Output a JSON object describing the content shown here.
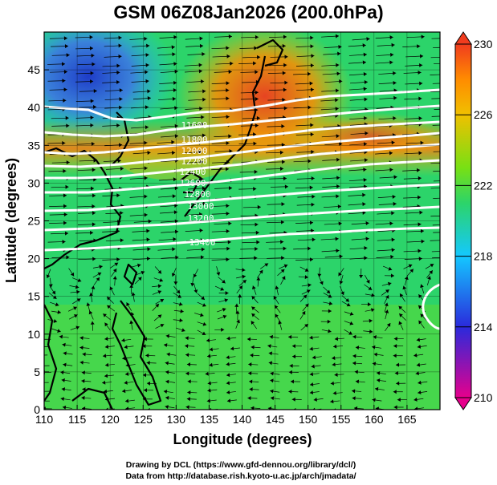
{
  "title": "GSM 06Z08Jan2026 (200.0hPa)",
  "footer": {
    "line1": "Drawing by DCL (https://www.gfd-dennou.org/library/dcl/)",
    "line2": "Data from http://database.rish.kyoto-u.ac.jp/arch/jmadata/"
  },
  "chart_data": {
    "type": "heatmap",
    "title": "GSM 06Z08Jan2026 (200.0hPa)",
    "xlabel": "Longitude (degrees)",
    "ylabel": "Latitude  (degrees)",
    "xlim": [
      110,
      170
    ],
    "ylim": [
      0,
      50
    ],
    "xticks": [
      "110",
      "115",
      "120",
      "125",
      "130",
      "135",
      "140",
      "145",
      "150",
      "155",
      "160",
      "165"
    ],
    "yticks": [
      "0",
      "5",
      "10",
      "15",
      "20",
      "25",
      "30",
      "35",
      "40",
      "45"
    ],
    "colorbar": {
      "ticks": [
        "210",
        "214",
        "218",
        "222",
        "226",
        "230"
      ],
      "range": [
        210,
        230
      ],
      "colors": [
        "#e6008c",
        "#2a2adc",
        "#14c8ff",
        "#2cd46a",
        "#78e014",
        "#f0c000",
        "#ff8c00",
        "#f03c1e"
      ]
    },
    "contour_labels": [
      "11600",
      "11800",
      "12000",
      "12200",
      "12400",
      "12600",
      "12800",
      "13000",
      "13200",
      "13400"
    ],
    "contour_color": "#ffffff",
    "vector_field": "streamlines",
    "coastline_color": "#000000"
  }
}
